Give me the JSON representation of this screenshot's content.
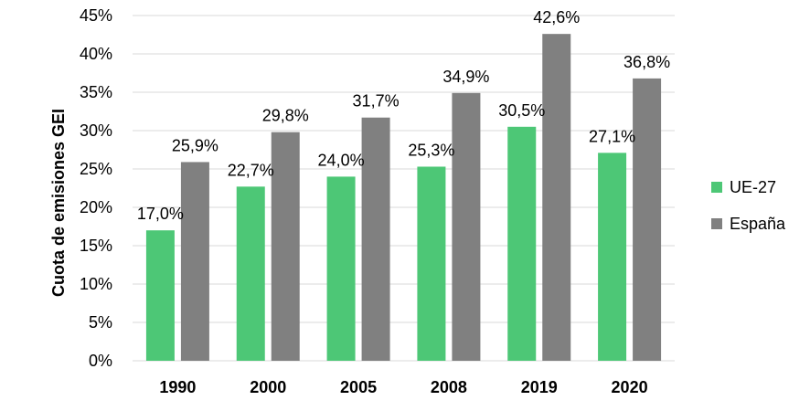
{
  "chart_data": {
    "type": "bar",
    "title": "",
    "xlabel": "",
    "ylabel": "Cuota de emisiones GEI",
    "categories": [
      "1990",
      "2000",
      "2005",
      "2008",
      "2019",
      "2020"
    ],
    "ylim": [
      0,
      45
    ],
    "yticks": [
      0,
      5,
      10,
      15,
      20,
      25,
      30,
      35,
      40,
      45
    ],
    "ytick_labels": [
      "0%",
      "5%",
      "10%",
      "15%",
      "20%",
      "25%",
      "30%",
      "35%",
      "40%",
      "45%"
    ],
    "grid": true,
    "legend_position": "right",
    "series": [
      {
        "name": "UE-27",
        "color": "#4dc776",
        "values": [
          17.0,
          22.7,
          24.0,
          25.3,
          30.5,
          27.1
        ],
        "labels": [
          "17,0%",
          "22,7%",
          "24,0%",
          "25,3%",
          "30,5%",
          "27,1%"
        ]
      },
      {
        "name": "España",
        "color": "#808080",
        "values": [
          25.9,
          29.8,
          31.7,
          34.9,
          42.6,
          36.8
        ],
        "labels": [
          "25,9%",
          "29,8%",
          "31,7%",
          "34,9%",
          "42,6%",
          "36,8%"
        ]
      }
    ]
  }
}
